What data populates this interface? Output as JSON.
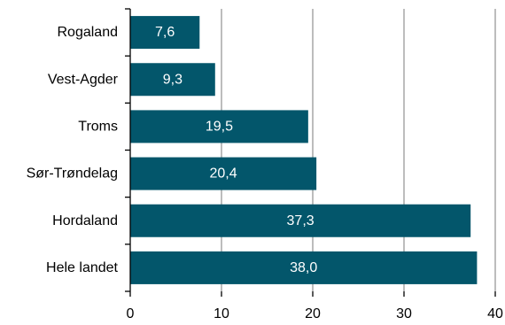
{
  "chart_data": {
    "type": "bar",
    "orientation": "horizontal",
    "categories": [
      "Rogaland",
      "Vest-Agder",
      "Troms",
      "Sør-Trøndelag",
      "Hordaland",
      "Hele landet"
    ],
    "values": [
      7.6,
      9.3,
      19.5,
      20.4,
      37.3,
      38.0
    ],
    "value_labels": [
      "7,6",
      "9,3",
      "19,5",
      "20,4",
      "37,3",
      "38,0"
    ],
    "x_ticks": [
      0,
      10,
      20,
      30,
      40
    ],
    "x_tick_labels": [
      "0",
      "10",
      "20",
      "30",
      "40"
    ],
    "xlim": [
      0,
      40
    ],
    "grid": "vertical",
    "legend": "none",
    "title": "",
    "xlabel": "",
    "ylabel": "",
    "colors": {
      "bar": "#03566b",
      "grid": "#999999",
      "axis": "#000000",
      "data_label": "#ffffff"
    }
  }
}
